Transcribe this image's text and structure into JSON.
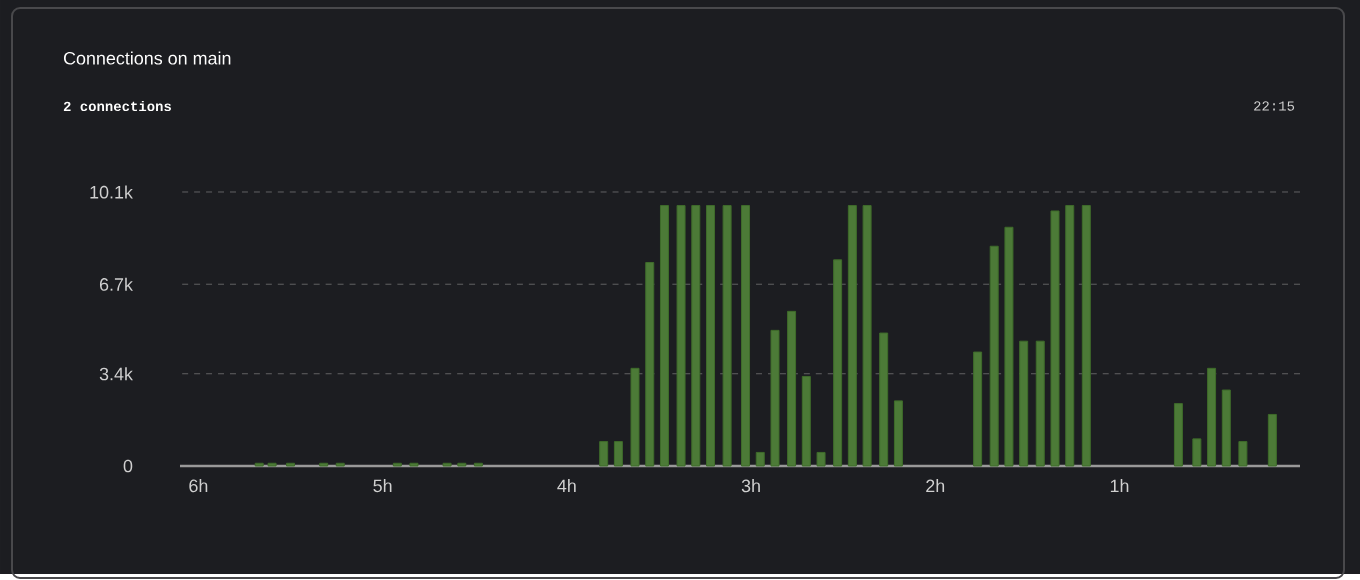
{
  "chart_data": {
    "type": "bar",
    "title": "Connections on main",
    "subtitle": "2 connections",
    "annotations": [
      "22:15"
    ],
    "x": [
      5.67,
      5.6,
      5.5,
      5.32,
      5.23,
      4.92,
      4.83,
      4.65,
      4.57,
      4.48,
      3.8,
      3.72,
      3.63,
      3.55,
      3.47,
      3.38,
      3.3,
      3.22,
      3.13,
      3.03,
      2.95,
      2.87,
      2.78,
      2.7,
      2.62,
      2.53,
      2.45,
      2.37,
      2.28,
      2.2,
      1.77,
      1.68,
      1.6,
      1.52,
      1.43,
      1.35,
      1.27,
      1.18,
      0.68,
      0.58,
      0.5,
      0.42,
      0.33,
      0.17
    ],
    "values": [
      0.1,
      0.1,
      0.1,
      0.1,
      0.1,
      0.1,
      0.1,
      0.1,
      0.1,
      0.1,
      0.9,
      0.9,
      3.6,
      7.5,
      9.6,
      9.6,
      9.6,
      9.6,
      9.6,
      9.6,
      0.5,
      5.0,
      5.7,
      3.3,
      0.5,
      7.6,
      9.6,
      9.6,
      4.9,
      2.4,
      4.2,
      8.1,
      8.8,
      4.6,
      4.6,
      9.4,
      9.6,
      9.6,
      2.3,
      1.0,
      3.6,
      2.8,
      0.9,
      1.9
    ],
    "color": "#4c7a37",
    "xlim": [
      6.1,
      0.02
    ],
    "ylim": [
      0,
      10.1
    ],
    "xticks": [
      {
        "value": 6,
        "label": "6h"
      },
      {
        "value": 5,
        "label": "5h"
      },
      {
        "value": 4,
        "label": "4h"
      },
      {
        "value": 3,
        "label": "3h"
      },
      {
        "value": 2,
        "label": "2h"
      },
      {
        "value": 1,
        "label": "1h"
      }
    ],
    "yticks": [
      {
        "value": 0,
        "label": "0"
      },
      {
        "value": 3.4,
        "label": "3.4k"
      },
      {
        "value": 6.7,
        "label": "6.7k"
      },
      {
        "value": 10.1,
        "label": "10.1k"
      }
    ],
    "grid": "y"
  }
}
